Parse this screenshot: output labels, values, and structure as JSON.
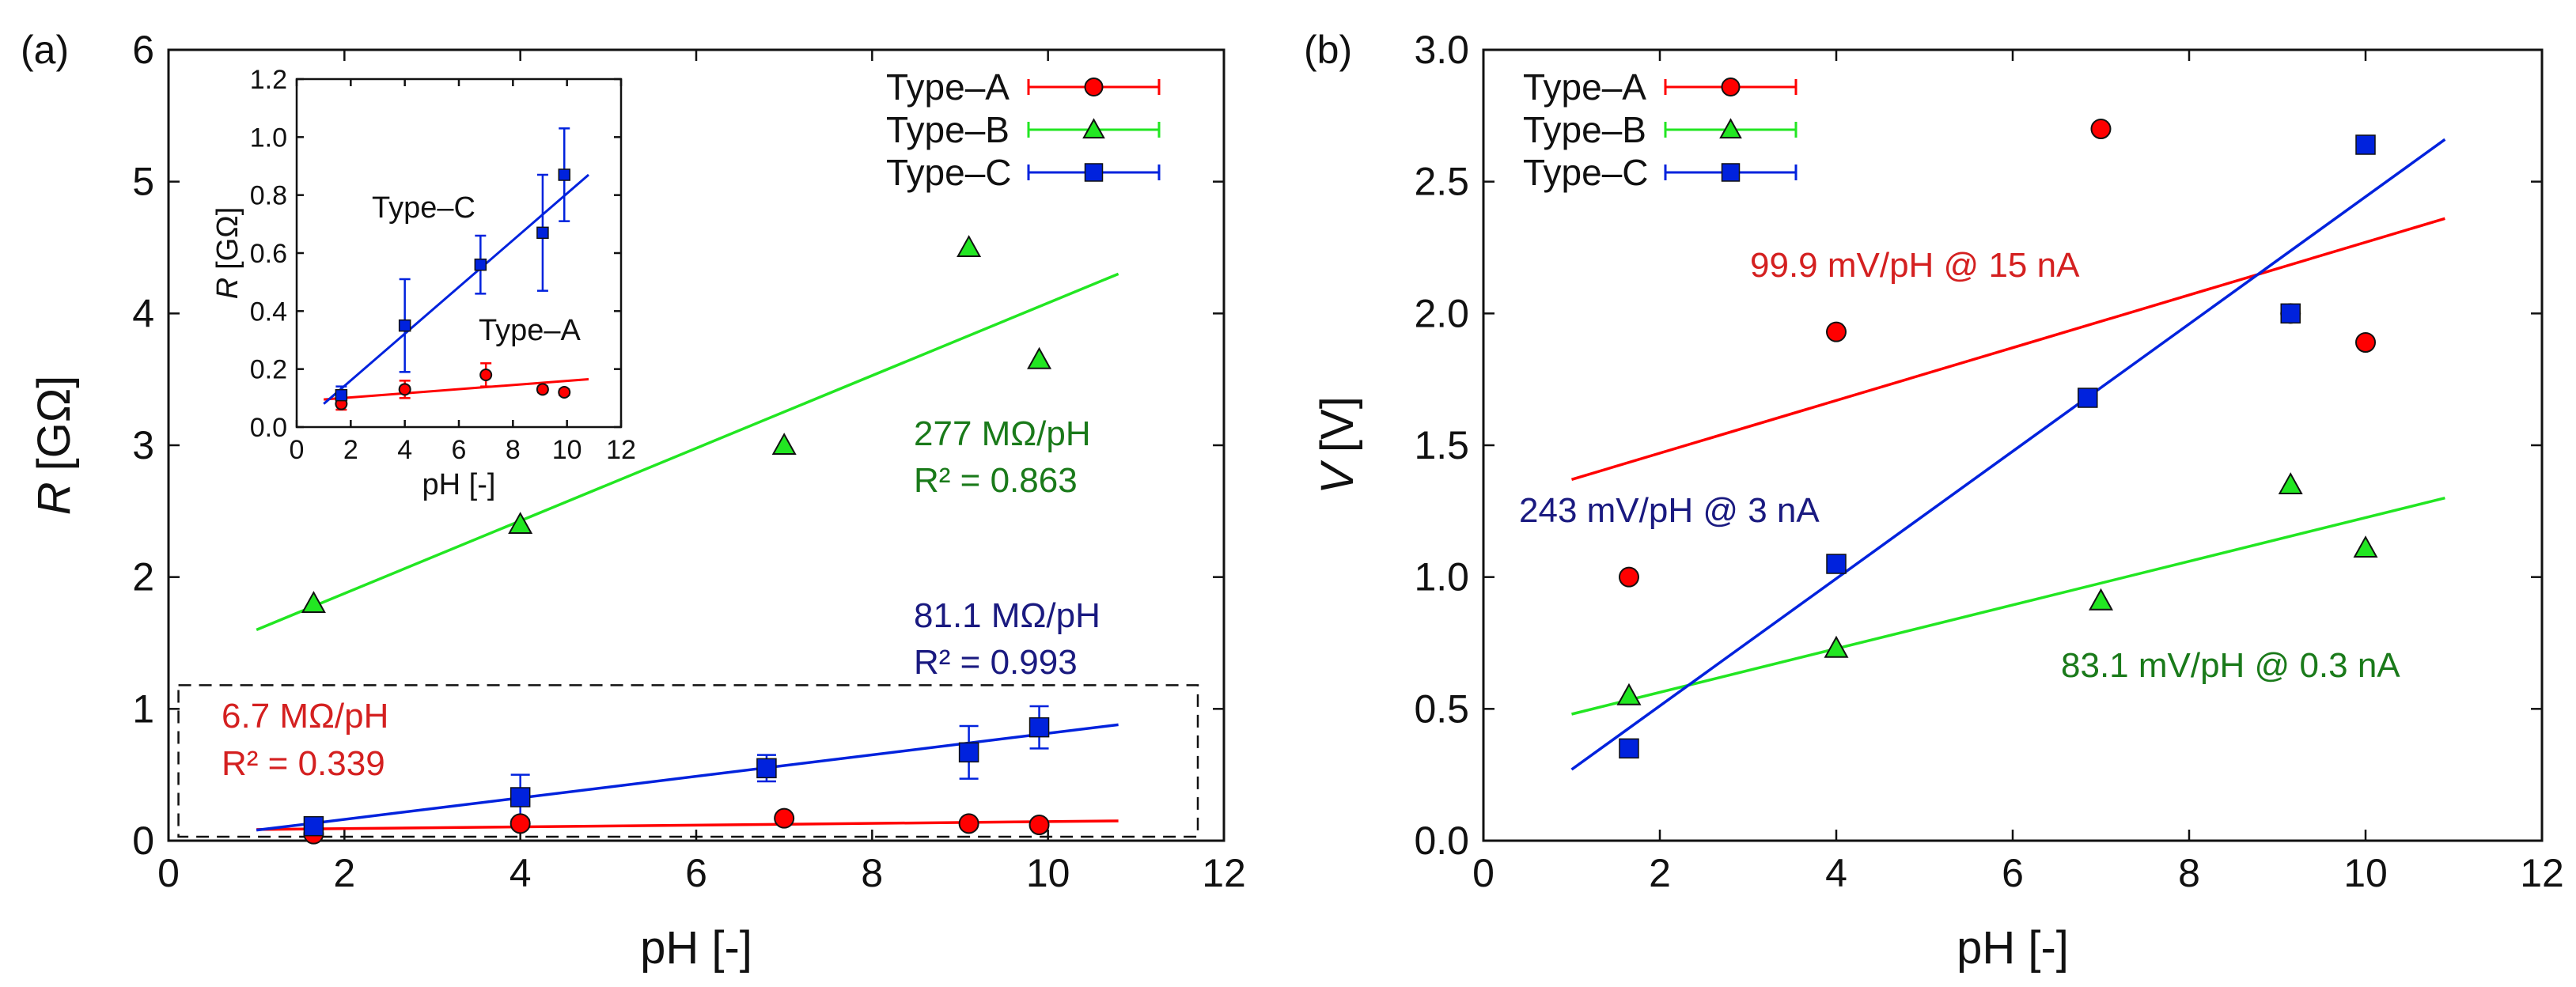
{
  "chart_data": [
    {
      "type": "scatter",
      "panel_label": "(a)",
      "xlabel": "pH [-]",
      "ylabel_italic": "R",
      "ylabel_unit": "[GΩ]",
      "xlim": [
        0,
        12
      ],
      "ylim": [
        0,
        6
      ],
      "xticks": [
        0,
        2,
        4,
        6,
        8,
        10,
        12
      ],
      "yticks": [
        0,
        1,
        2,
        3,
        4,
        5,
        6
      ],
      "legend_position": "top-right",
      "series": [
        {
          "name": "Type–A",
          "color": "#ff0000",
          "marker": "circle",
          "x": [
            1.65,
            4.0,
            7.0,
            9.1,
            9.9
          ],
          "y": [
            0.05,
            0.13,
            0.17,
            0.13,
            0.12
          ],
          "fit": {
            "x": [
              1.0,
              10.8
            ],
            "y": [
              0.085,
              0.15
            ]
          }
        },
        {
          "name": "Type–B",
          "color": "#22e622",
          "marker": "triangle",
          "x": [
            1.65,
            4.0,
            7.0,
            9.1,
            9.9
          ],
          "y": [
            1.8,
            2.4,
            3.0,
            4.5,
            3.65
          ],
          "fit": {
            "x": [
              1.0,
              10.8
            ],
            "y": [
              1.6,
              4.3
            ]
          }
        },
        {
          "name": "Type–C",
          "color": "#0022dd",
          "marker": "square",
          "x": [
            1.65,
            4.0,
            6.8,
            9.1,
            9.9
          ],
          "y": [
            0.11,
            0.33,
            0.55,
            0.67,
            0.86
          ],
          "err": [
            0.03,
            0.17,
            0.1,
            0.2,
            0.16
          ],
          "fit": {
            "x": [
              1.0,
              10.8
            ],
            "y": [
              0.08,
              0.88
            ]
          }
        }
      ],
      "annotations": [
        {
          "text": "277 MΩ/pH",
          "color": "#1a7a1a"
        },
        {
          "text": "R² = 0.863",
          "color": "#1a7a1a"
        },
        {
          "text": "81.1 MΩ/pH",
          "color": "#1a1a80"
        },
        {
          "text": "R² = 0.993",
          "color": "#1a1a80"
        },
        {
          "text": "6.7 MΩ/pH",
          "color": "#d42020"
        },
        {
          "text": "R² = 0.339",
          "color": "#d42020"
        }
      ],
      "zoom_box": {
        "xlim": [
          0.05,
          12
        ],
        "ylim": [
          0.03,
          1.18
        ]
      },
      "inset": {
        "xlabel": "pH [-]",
        "ylabel_italic": "R",
        "ylabel_unit": "[GΩ]",
        "xlim": [
          0,
          12
        ],
        "ylim": [
          0,
          1.2
        ],
        "xticks": [
          0,
          2,
          4,
          6,
          8,
          10,
          12
        ],
        "yticks": [
          0.0,
          0.2,
          0.4,
          0.6,
          0.8,
          1.0,
          1.2
        ],
        "ytick_labels": [
          "0.0",
          "0.2",
          "0.4",
          "0.6",
          "0.8",
          "1.0",
          "1.2"
        ],
        "labels": [
          "Type–C",
          "Type–A"
        ],
        "series": [
          {
            "name": "Type–A",
            "color": "#ff0000",
            "marker": "circle",
            "x": [
              1.65,
              4.0,
              7.0,
              9.1,
              9.9
            ],
            "y": [
              0.08,
              0.13,
              0.18,
              0.13,
              0.12
            ],
            "err": [
              0.02,
              0.03,
              0.04,
              0.01,
              0.01
            ],
            "fit": {
              "x": [
                1.0,
                10.8
              ],
              "y": [
                0.095,
                0.165
              ]
            }
          },
          {
            "name": "Type–C",
            "color": "#0022dd",
            "marker": "square",
            "x": [
              1.65,
              4.0,
              6.8,
              9.1,
              9.9
            ],
            "y": [
              0.11,
              0.35,
              0.56,
              0.67,
              0.87
            ],
            "err": [
              0.03,
              0.16,
              0.1,
              0.2,
              0.16
            ],
            "fit": {
              "x": [
                1.0,
                10.8
              ],
              "y": [
                0.08,
                0.87
              ]
            }
          }
        ]
      }
    },
    {
      "type": "scatter",
      "panel_label": "(b)",
      "xlabel": "pH [-]",
      "ylabel_italic": "V",
      "ylabel_unit": "[V]",
      "xlim": [
        0,
        12
      ],
      "ylim": [
        0,
        3
      ],
      "xticks": [
        0,
        2,
        4,
        6,
        8,
        10,
        12
      ],
      "yticks": [
        0.0,
        0.5,
        1.0,
        1.5,
        2.0,
        2.5,
        3.0
      ],
      "ytick_labels": [
        "0.0",
        "0.5",
        "1.0",
        "1.5",
        "2.0",
        "2.5",
        "3.0"
      ],
      "legend_position": "top-left",
      "series": [
        {
          "name": "Type–A",
          "color": "#ff0000",
          "marker": "circle",
          "x": [
            1.65,
            4.0,
            7.0,
            9.15,
            10.0
          ],
          "y": [
            1.0,
            1.93,
            2.7,
            2.0,
            1.89
          ],
          "fit": {
            "x": [
              1.0,
              10.9
            ],
            "y": [
              1.37,
              2.36
            ]
          }
        },
        {
          "name": "Type–B",
          "color": "#22e622",
          "marker": "triangle",
          "x": [
            1.65,
            4.0,
            7.0,
            9.15,
            10.0
          ],
          "y": [
            0.55,
            0.73,
            0.91,
            1.35,
            1.11
          ],
          "fit": {
            "x": [
              1.0,
              10.9
            ],
            "y": [
              0.48,
              1.3
            ]
          }
        },
        {
          "name": "Type–C",
          "color": "#0022dd",
          "marker": "square",
          "x": [
            1.65,
            4.0,
            6.85,
            9.15,
            10.0
          ],
          "y": [
            0.35,
            1.05,
            1.68,
            2.0,
            2.64
          ],
          "fit": {
            "x": [
              1.0,
              10.9
            ],
            "y": [
              0.27,
              2.66
            ]
          }
        }
      ],
      "annotations": [
        {
          "text": "99.9 mV/pH @ 15 nA",
          "color": "#d42020"
        },
        {
          "text": "243 mV/pH @ 3 nA",
          "color": "#1a1a80"
        },
        {
          "text": "83.1 mV/pH @ 0.3 nA",
          "color": "#1a7a1a"
        }
      ]
    }
  ]
}
